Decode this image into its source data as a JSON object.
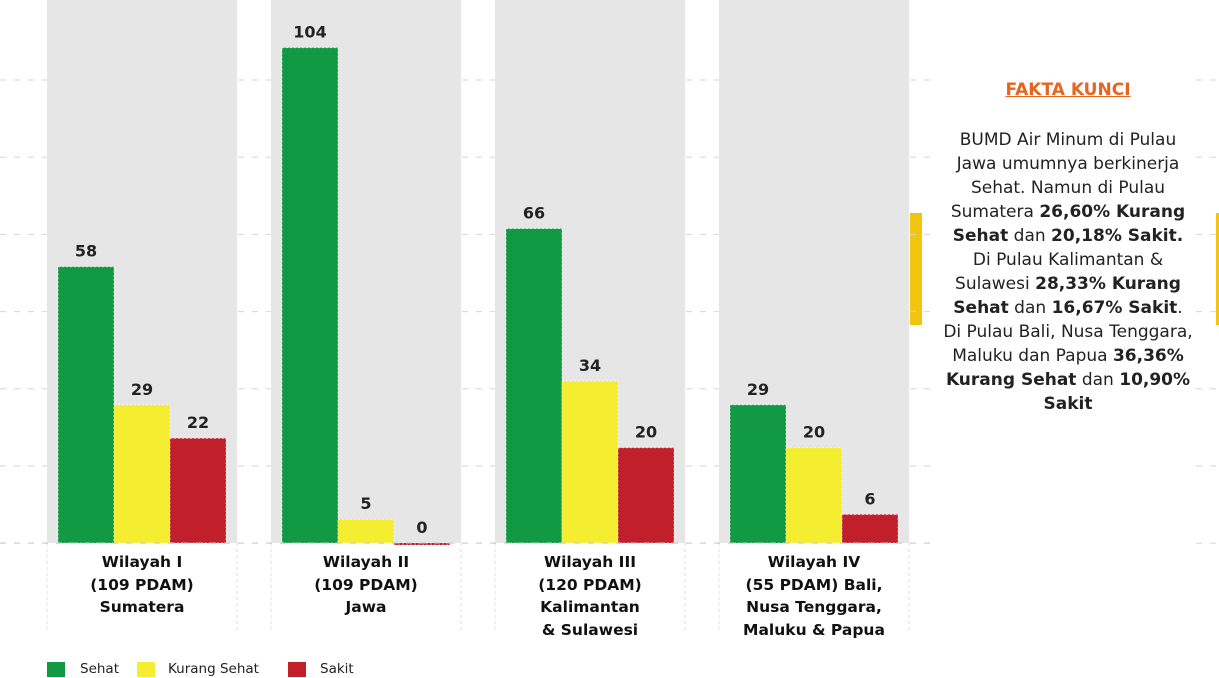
{
  "chart_data": {
    "type": "bar",
    "categories": [
      "Wilayah I\n(109 PDAM)\nSumatera",
      "Wilayah II\n(109 PDAM)\nJawa",
      "Wilayah III\n(120 PDAM)\nKalimantan\n& Sulawesi",
      "Wilayah IV\n(55 PDAM) Bali,\nNusa Tenggara,\nMaluku & Papua"
    ],
    "series": [
      {
        "name": "Sehat",
        "color": "#119944",
        "values": [
          58,
          104,
          66,
          29
        ]
      },
      {
        "name": "Kurang Sehat",
        "color": "#f5ee30",
        "values": [
          29,
          5,
          34,
          20
        ]
      },
      {
        "name": "Sakit",
        "color": "#c21f2d",
        "values": [
          22,
          0,
          20,
          6
        ]
      }
    ],
    "ylim": [
      0,
      114
    ]
  },
  "fakta_kunci": {
    "title": "FAKTA KUNCI",
    "body": [
      {
        "text": "BUMD Air Minum di Pulau Jawa umumnya berkinerja Sehat. Namun di Pulau Sumatera ",
        "bold": false
      },
      {
        "text": "26,60% Kurang Sehat",
        "bold": true
      },
      {
        "text": " dan ",
        "bold": false
      },
      {
        "text": "20,18% Sakit.",
        "bold": true
      },
      {
        "text": " Di Pulau Kalimantan & Sulawesi ",
        "bold": false
      },
      {
        "text": "28,33% Kurang Sehat",
        "bold": true
      },
      {
        "text": " dan ",
        "bold": false
      },
      {
        "text": "16,67% Sakit",
        "bold": true
      },
      {
        "text": ". Di Pulau Bali, Nusa Tenggara, Maluku dan Papua ",
        "bold": false
      },
      {
        "text": "36,36% Kurang Sehat",
        "bold": true
      },
      {
        "text": " dan ",
        "bold": false
      },
      {
        "text": "10,90% Sakit",
        "bold": true
      }
    ]
  }
}
